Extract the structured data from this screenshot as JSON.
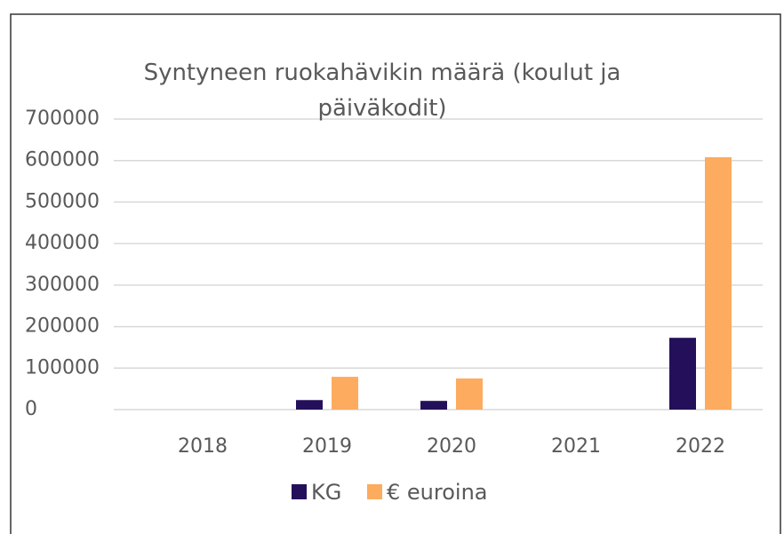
{
  "chart_data": {
    "type": "bar",
    "title": "Syntyneen ruokahävikin määrä (koulut ja päiväkodit)",
    "categories": [
      "2018",
      "2019",
      "2020",
      "2021",
      "2022"
    ],
    "series": [
      {
        "name": "KG",
        "color": "#24105a",
        "values": [
          0,
          23000,
          21000,
          0,
          173000
        ]
      },
      {
        "name": "€  euroina",
        "color": "#fdab5f",
        "values": [
          0,
          79000,
          75000,
          0,
          608000
        ]
      }
    ],
    "ylim": [
      0,
      700000
    ],
    "yticks": [
      0,
      100000,
      200000,
      300000,
      400000,
      500000,
      600000,
      700000
    ],
    "grid": true,
    "legend": "bottom"
  }
}
